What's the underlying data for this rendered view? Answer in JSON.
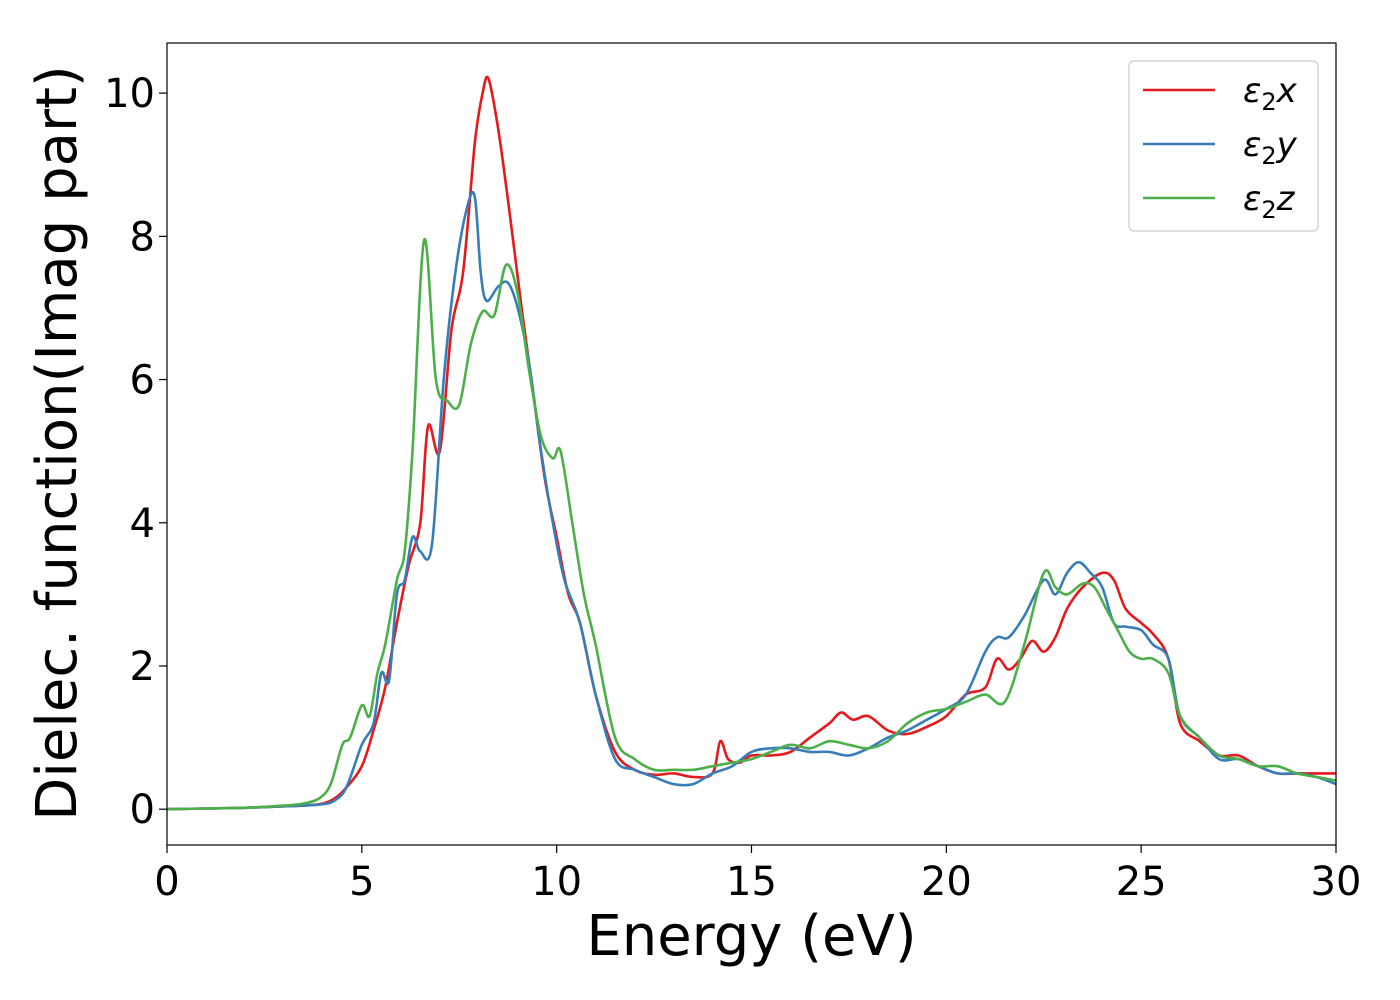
{
  "chart_data": {
    "type": "line",
    "title": "",
    "xlabel": "Energy (eV)",
    "ylabel": "Dielec. function(Imag part)",
    "xlim": [
      0,
      30
    ],
    "ylim": [
      -0.5,
      10.7
    ],
    "xticks": [
      0,
      5,
      10,
      15,
      20,
      25,
      30
    ],
    "yticks": [
      0,
      2,
      4,
      6,
      8,
      10
    ],
    "xtick_labels": [
      "0",
      "5",
      "10",
      "15",
      "20",
      "25",
      "30"
    ],
    "ytick_labels": [
      "0",
      "2",
      "4",
      "6",
      "8",
      "10"
    ],
    "grid": false,
    "legend_position": "top-right",
    "series": [
      {
        "name": "ε₂x",
        "legend_base": "ε",
        "legend_sub": "2",
        "legend_axis": "x",
        "color": "#e41a1c",
        "x": [
          0,
          1,
          2,
          3,
          3.5,
          4,
          4.3,
          4.6,
          5,
          5.3,
          5.6,
          5.9,
          6.2,
          6.5,
          6.7,
          7,
          7.3,
          7.6,
          7.9,
          8.1,
          8.25,
          8.5,
          8.8,
          9.1,
          9.4,
          9.7,
          10,
          10.3,
          10.6,
          11,
          11.5,
          12,
          12.5,
          13,
          13.5,
          14,
          14.2,
          14.4,
          14.7,
          15,
          15.5,
          16,
          16.5,
          17,
          17.3,
          17.6,
          18,
          18.5,
          19,
          19.5,
          20,
          20.5,
          21,
          21.3,
          21.6,
          21.9,
          22.2,
          22.5,
          22.8,
          23.1,
          23.5,
          24,
          24.3,
          24.6,
          25,
          25.3,
          25.7,
          26,
          26.5,
          27,
          27.5,
          28,
          28.5,
          29,
          29.5,
          30
        ],
        "y": [
          0,
          0.01,
          0.02,
          0.04,
          0.05,
          0.08,
          0.15,
          0.3,
          0.6,
          1.1,
          1.7,
          2.6,
          3.4,
          4.0,
          5.35,
          5.0,
          6.7,
          7.5,
          9.3,
          10.0,
          10.2,
          9.5,
          8.3,
          7.0,
          5.8,
          4.6,
          3.8,
          3.0,
          2.6,
          1.6,
          0.8,
          0.55,
          0.48,
          0.5,
          0.45,
          0.5,
          0.95,
          0.7,
          0.65,
          0.75,
          0.75,
          0.8,
          1.0,
          1.2,
          1.35,
          1.25,
          1.3,
          1.1,
          1.05,
          1.15,
          1.3,
          1.6,
          1.7,
          2.1,
          1.95,
          2.1,
          2.35,
          2.2,
          2.4,
          2.8,
          3.1,
          3.3,
          3.2,
          2.8,
          2.6,
          2.45,
          2.1,
          1.2,
          0.95,
          0.75,
          0.75,
          0.6,
          0.5,
          0.5,
          0.5,
          0.5
        ]
      },
      {
        "name": "ε₂y",
        "legend_base": "ε",
        "legend_sub": "2",
        "legend_axis": "y",
        "color": "#377eb8",
        "x": [
          0,
          1,
          2,
          3,
          3.5,
          4,
          4.3,
          4.6,
          5,
          5.3,
          5.5,
          5.7,
          5.9,
          6.1,
          6.3,
          6.5,
          6.8,
          7.1,
          7.4,
          7.7,
          7.9,
          8.05,
          8.2,
          8.5,
          8.75,
          9,
          9.3,
          9.6,
          9.9,
          10.2,
          10.6,
          11,
          11.5,
          12,
          12.5,
          13,
          13.5,
          14,
          14.5,
          15,
          15.5,
          16,
          16.5,
          17,
          17.5,
          18,
          18.5,
          19,
          19.5,
          20,
          20.5,
          21,
          21.3,
          21.6,
          22,
          22.5,
          22.8,
          23.1,
          23.4,
          23.7,
          24,
          24.3,
          24.6,
          25,
          25.3,
          25.7,
          26,
          26.5,
          27,
          27.5,
          28,
          28.5,
          29,
          29.5,
          30
        ],
        "y": [
          0,
          0.01,
          0.02,
          0.04,
          0.05,
          0.07,
          0.12,
          0.3,
          0.9,
          1.2,
          1.9,
          1.8,
          3.0,
          3.2,
          3.8,
          3.6,
          3.7,
          6.0,
          7.5,
          8.4,
          8.55,
          7.5,
          7.1,
          7.3,
          7.35,
          7.0,
          6.2,
          5.0,
          4.0,
          3.2,
          2.6,
          1.6,
          0.7,
          0.55,
          0.45,
          0.35,
          0.35,
          0.5,
          0.6,
          0.8,
          0.85,
          0.85,
          0.8,
          0.8,
          0.75,
          0.85,
          1.0,
          1.1,
          1.25,
          1.4,
          1.6,
          2.2,
          2.4,
          2.4,
          2.7,
          3.2,
          3.0,
          3.3,
          3.45,
          3.3,
          3.1,
          2.6,
          2.55,
          2.5,
          2.3,
          2.1,
          1.3,
          1.0,
          0.7,
          0.7,
          0.6,
          0.5,
          0.5,
          0.45,
          0.35
        ]
      },
      {
        "name": "ε₂z",
        "legend_base": "ε",
        "legend_sub": "2",
        "legend_axis": "z",
        "color": "#4daf4a",
        "x": [
          0,
          1,
          2,
          3,
          3.5,
          3.9,
          4.2,
          4.5,
          4.7,
          5,
          5.2,
          5.4,
          5.6,
          5.9,
          6.1,
          6.3,
          6.6,
          6.9,
          7.2,
          7.5,
          7.8,
          8.1,
          8.4,
          8.7,
          9,
          9.3,
          9.6,
          9.9,
          10.1,
          10.4,
          10.7,
          11,
          11.5,
          12,
          12.5,
          13,
          13.5,
          14,
          14.5,
          15,
          15.5,
          16,
          16.5,
          17,
          17.5,
          18,
          18.5,
          19,
          19.5,
          20,
          20.5,
          21,
          21.5,
          22,
          22.5,
          22.8,
          23.1,
          23.5,
          23.8,
          24.1,
          24.4,
          24.7,
          25,
          25.3,
          25.7,
          26,
          26.5,
          27,
          27.5,
          28,
          28.5,
          29,
          29.5,
          30
        ],
        "y": [
          0,
          0.01,
          0.02,
          0.05,
          0.08,
          0.15,
          0.35,
          0.9,
          1.0,
          1.45,
          1.3,
          1.9,
          2.3,
          3.2,
          3.6,
          5.0,
          7.95,
          6.0,
          5.7,
          5.65,
          6.5,
          6.95,
          6.9,
          7.6,
          7.2,
          6.1,
          5.2,
          4.9,
          5.0,
          4.0,
          3.0,
          2.3,
          1.0,
          0.7,
          0.55,
          0.55,
          0.55,
          0.6,
          0.65,
          0.7,
          0.8,
          0.9,
          0.85,
          0.95,
          0.9,
          0.85,
          0.95,
          1.2,
          1.35,
          1.4,
          1.5,
          1.6,
          1.5,
          2.3,
          3.3,
          3.1,
          3.0,
          3.15,
          3.1,
          2.8,
          2.5,
          2.2,
          2.1,
          2.1,
          1.9,
          1.3,
          1.0,
          0.75,
          0.7,
          0.6,
          0.6,
          0.5,
          0.45,
          0.4
        ]
      }
    ]
  }
}
